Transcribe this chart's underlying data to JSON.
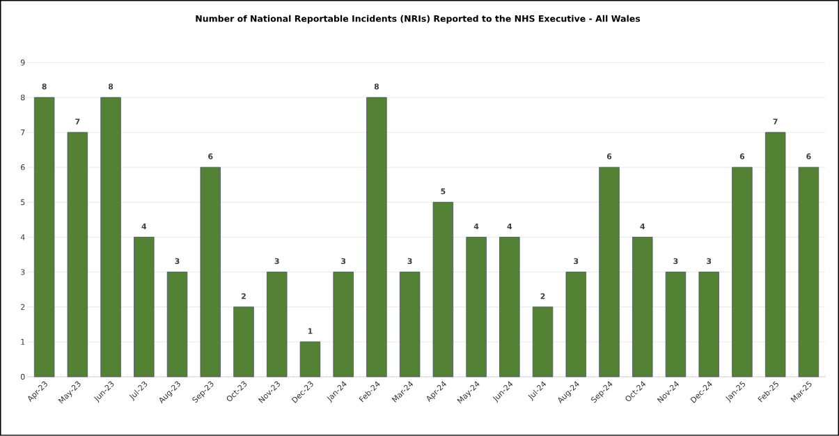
{
  "chart_data": {
    "type": "bar",
    "title": "Number of National Reportable Incidents (NRIs) Reported to the NHS Executive - All Wales",
    "categories": [
      "Apr-23",
      "May-23",
      "Jun-23",
      "Jul-23",
      "Aug-23",
      "Sep-23",
      "Oct-23",
      "Nov-23",
      "Dec-23",
      "Jan-24",
      "Feb-24",
      "Mar-24",
      "Apr-24",
      "May-24",
      "Jun-24",
      "Jul-24",
      "Aug-24",
      "Sep-24",
      "Oct-24",
      "Nov-24",
      "Dec-24",
      "Jan-25",
      "Feb-25",
      "Mar-25"
    ],
    "values": [
      8,
      7,
      8,
      4,
      3,
      6,
      2,
      3,
      1,
      3,
      8,
      3,
      5,
      4,
      4,
      2,
      3,
      6,
      4,
      3,
      3,
      6,
      7,
      6
    ],
    "color": "#548235",
    "ylim": [
      0,
      9
    ],
    "yticks": [
      0,
      1,
      2,
      3,
      4,
      5,
      6,
      7,
      8,
      9
    ],
    "grid": "y",
    "data_labels": true
  }
}
